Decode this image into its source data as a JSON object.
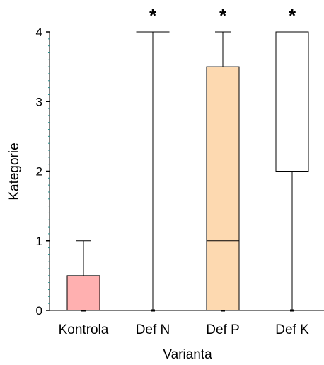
{
  "chart_data": {
    "type": "boxplot",
    "xlabel": "Varianta",
    "ylabel": "Kategorie",
    "ylim": [
      0,
      4
    ],
    "yticks": [
      0,
      1,
      2,
      3,
      4
    ],
    "grid": false,
    "categories": [
      "Kontrola",
      "Def N",
      "Def P",
      "Def K"
    ],
    "boxes": [
      {
        "category": "Kontrola",
        "min": 0,
        "q1": 0,
        "median": 0,
        "q3": 0.5,
        "max": 1,
        "fill": "#ffb0b0",
        "significance": ""
      },
      {
        "category": "Def N",
        "min": 0,
        "q1": 4,
        "median": 4,
        "q3": 4,
        "max": 4,
        "fill": "#ffffff",
        "significance": "*"
      },
      {
        "category": "Def P",
        "min": 0,
        "q1": 0,
        "median": 1,
        "q3": 3.5,
        "max": 4,
        "fill": "#fdd9b0",
        "significance": "*"
      },
      {
        "category": "Def K",
        "min": 0,
        "q1": 2,
        "median": 4,
        "q3": 4,
        "max": 4,
        "fill": "#ffffff",
        "significance": "*"
      }
    ]
  }
}
